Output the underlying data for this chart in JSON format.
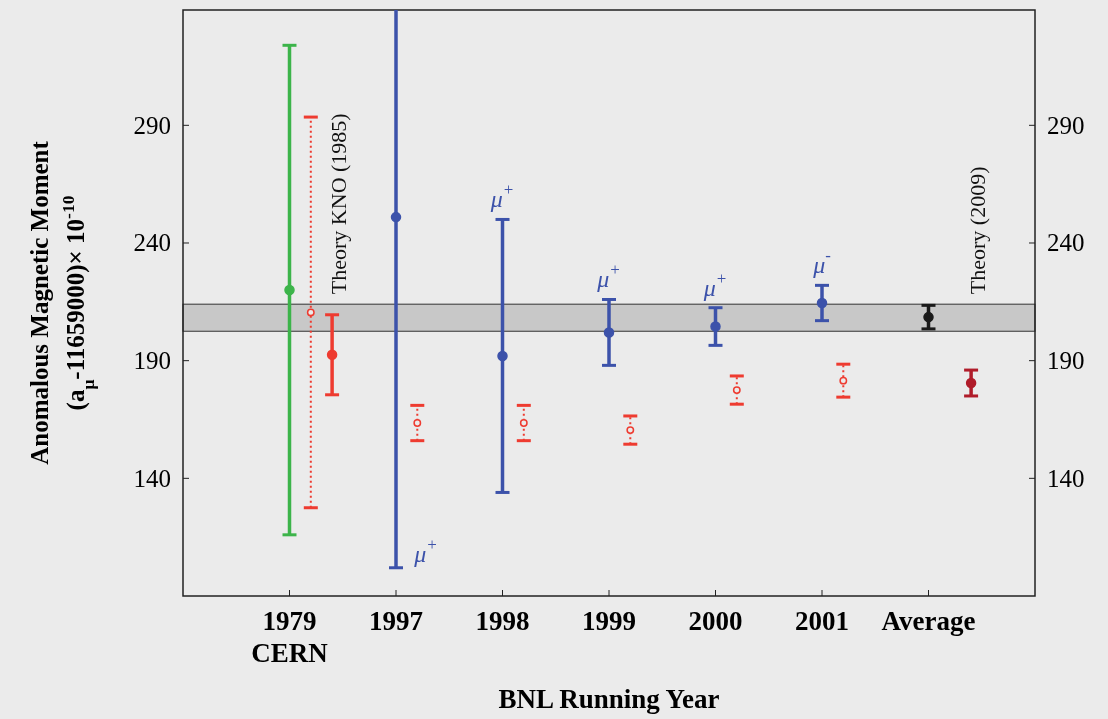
{
  "chart_data": {
    "type": "scatter",
    "xlabel": "BNL Running Year",
    "ylabel": "Anomalous Magnetic Moment\n(a$_{μ}$-11659000)× 10$^{-10}$",
    "categories": [
      "1979\nCERN",
      "1997",
      "1998",
      "1999",
      "2000",
      "2001",
      "Average"
    ],
    "ylim": [
      90,
      339
    ],
    "yticks": [
      140,
      190,
      240,
      290
    ],
    "y2lim": [
      90,
      339
    ],
    "y2ticks": [
      140,
      190,
      240,
      290
    ],
    "grid": false,
    "marker": "circle",
    "series": [
      {
        "color": "#3cb44a",
        "values": [
          220,
          null,
          null,
          null,
          null,
          null,
          null
        ],
        "errors": [
          104,
          null,
          null,
          null,
          null,
          null,
          null
        ],
        "line_style": "solid"
      },
      {
        "color": "#3c52aa",
        "values": [
          null,
          251,
          192,
          202,
          204.5,
          214.5,
          null
        ],
        "errors": [
          null,
          [
            102,
            339
          ],
          58,
          14,
          8,
          7.5,
          null
        ],
        "line_style": "solid"
      },
      {
        "color": "#1a1a1a",
        "values": [
          null,
          null,
          null,
          null,
          null,
          null,
          208.5
        ],
        "errors": [
          null,
          null,
          null,
          null,
          null,
          null,
          5
        ],
        "line_style": "solid"
      },
      {
        "color": "#ee3b30",
        "values": [
          210.5,
          163.5,
          163.5,
          160.5,
          177.5,
          181.5,
          null
        ],
        "errors": [
          83,
          7.5,
          7.5,
          6,
          6,
          7,
          null
        ],
        "line_style": "dotted"
      },
      {
        "colors": [
          "#ee3b30",
          null,
          null,
          null,
          null,
          null,
          "#b01c2a"
        ],
        "values": [
          192.5,
          null,
          null,
          null,
          null,
          null,
          180.5
        ],
        "errors": [
          17,
          null,
          null,
          null,
          null,
          null,
          5.5
        ],
        "line_style": "solid"
      }
    ],
    "bands": [
      {
        "axis": "y",
        "from": 202.5,
        "to": 214,
        "color": "#c8c8c8"
      }
    ],
    "annotations": [
      "Theory KNO (1985)",
      "Theory (2009)",
      "μ$^{+}$",
      "μ$^{+}$",
      "μ$^{+}$",
      "μ$^{+}$",
      "μ$^{-}$"
    ]
  }
}
